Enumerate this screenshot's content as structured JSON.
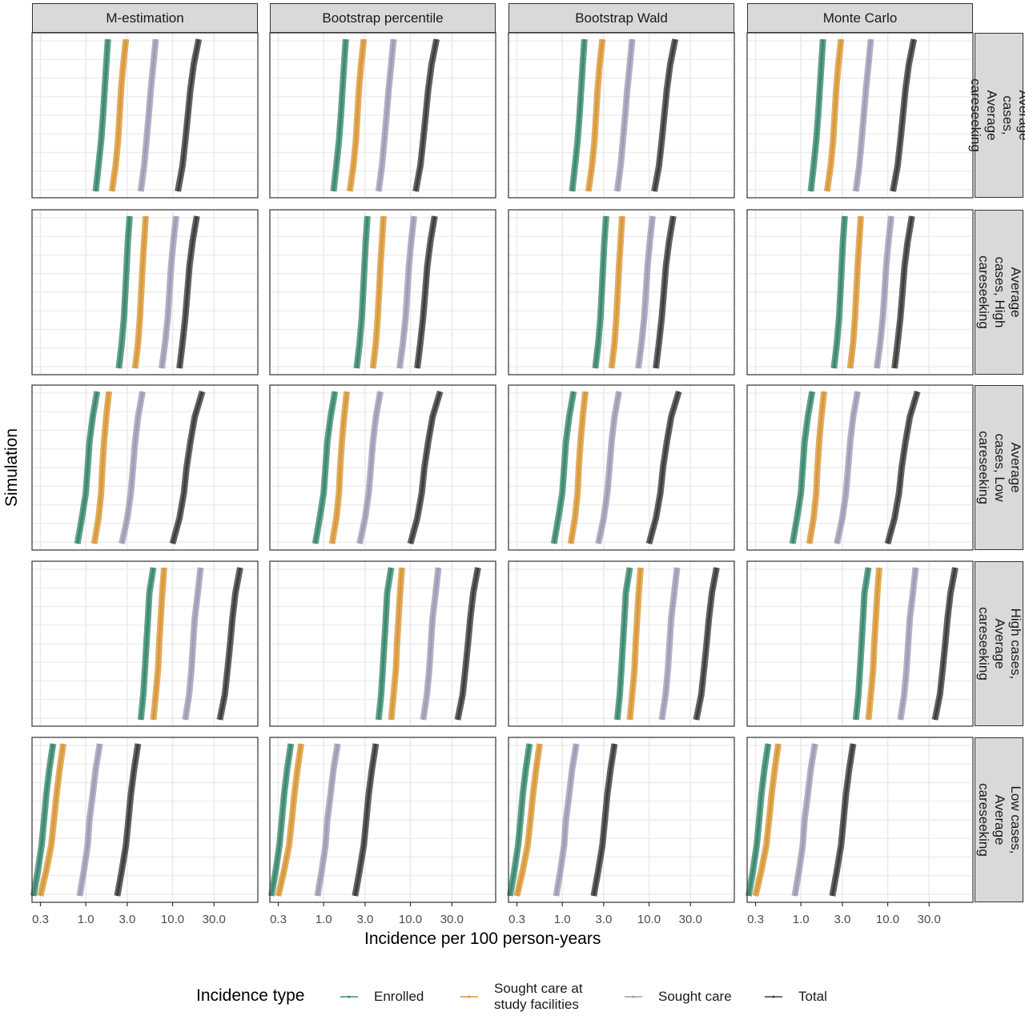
{
  "chart_data": {
    "type": "facet-range",
    "xlabel": "Incidence per 100 person-years",
    "ylabel": "Simulation",
    "legend_title": "Incidence type",
    "log_x": true,
    "grid": true,
    "xlim": [
      0.24,
      96
    ],
    "xticks": [
      0.3,
      {
        "value": 1,
        "label": "1.0"
      },
      {
        "value": 3,
        "label": "3.0"
      },
      {
        "value": 10,
        "label": "10.0"
      },
      {
        "value": 30,
        "label": "30.0"
      }
    ],
    "columns": [
      "M-estimation",
      "Bootstrap percentile",
      "Bootstrap Wald",
      "Monte Carlo"
    ],
    "series": [
      {
        "name": "Enrolled",
        "color": "#3b8a6f"
      },
      {
        "name": "Sought care at study facilities",
        "color": "#d9993a"
      },
      {
        "name": "Sought care",
        "color": "#9d9db6"
      },
      {
        "name": "Total",
        "color": "#3d3d3d"
      }
    ],
    "rows": [
      {
        "label": "Average cases, Average careseeking",
        "series": [
          {
            "values": [
              1.3,
              1.4,
              1.5,
              1.58,
              1.65,
              1.72,
              1.8
            ]
          },
          {
            "values": [
              2.0,
              2.2,
              2.35,
              2.45,
              2.55,
              2.7,
              2.9
            ]
          },
          {
            "values": [
              4.3,
              4.7,
              5.0,
              5.3,
              5.6,
              6.0,
              6.4
            ]
          },
          {
            "values": [
              11.5,
              13,
              14,
              15,
              16,
              17.5,
              20
            ]
          }
        ]
      },
      {
        "label": "Average cases, High careseeking",
        "series": [
          {
            "values": [
              2.4,
              2.6,
              2.75,
              2.85,
              2.95,
              3.05,
              3.2
            ]
          },
          {
            "values": [
              3.7,
              4.0,
              4.2,
              4.35,
              4.5,
              4.7,
              4.9
            ]
          },
          {
            "values": [
              7.5,
              8.2,
              8.8,
              9.2,
              9.6,
              10.2,
              11
            ]
          },
          {
            "values": [
              12,
              13,
              14,
              14.8,
              15.6,
              17,
              19
            ]
          }
        ]
      },
      {
        "label": "Average cases, Low careseeking",
        "series": [
          {
            "values": [
              0.8,
              0.9,
              1.0,
              1.05,
              1.1,
              1.2,
              1.35
            ]
          },
          {
            "values": [
              1.25,
              1.4,
              1.5,
              1.55,
              1.62,
              1.72,
              1.85
            ]
          },
          {
            "values": [
              2.6,
              3.0,
              3.3,
              3.5,
              3.7,
              4.0,
              4.5
            ]
          },
          {
            "values": [
              10,
              12,
              13.5,
              14.5,
              16,
              18,
              22
            ]
          }
        ]
      },
      {
        "label": "High cases, Average careseeking",
        "series": [
          {
            "values": [
              4.3,
              4.6,
              4.8,
              5.0,
              5.2,
              5.4,
              6.0
            ]
          },
          {
            "values": [
              6.0,
              6.4,
              6.8,
              7.0,
              7.3,
              7.6,
              8.0
            ]
          },
          {
            "values": [
              14,
              15.5,
              16.5,
              17.2,
              18,
              19.5,
              21
            ]
          },
          {
            "values": [
              35,
              40,
              43,
              46,
              49,
              53,
              60
            ]
          }
        ]
      },
      {
        "label": "Low cases, Average careseeking",
        "series": [
          {
            "values": [
              0.25,
              0.28,
              0.31,
              0.33,
              0.35,
              0.38,
              0.42
            ]
          },
          {
            "values": [
              0.3,
              0.35,
              0.4,
              0.43,
              0.46,
              0.5,
              0.55
            ]
          },
          {
            "values": [
              0.85,
              0.95,
              1.05,
              1.1,
              1.2,
              1.3,
              1.45
            ]
          },
          {
            "values": [
              2.3,
              2.6,
              2.9,
              3.1,
              3.3,
              3.6,
              4.0
            ]
          }
        ]
      }
    ]
  }
}
